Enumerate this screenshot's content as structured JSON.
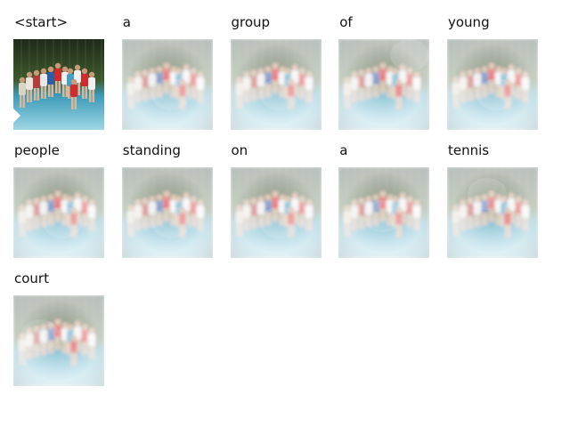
{
  "caption_tokens": [
    {
      "word": "<start>",
      "attention_focus": "none"
    },
    {
      "word": "a",
      "attention_focus": "people"
    },
    {
      "word": "group",
      "attention_focus": "people"
    },
    {
      "word": "of",
      "attention_focus": "top-right"
    },
    {
      "word": "young",
      "attention_focus": "people"
    },
    {
      "word": "people",
      "attention_focus": "people"
    },
    {
      "word": "standing",
      "attention_focus": "people"
    },
    {
      "word": "on",
      "attention_focus": "people"
    },
    {
      "word": "a",
      "attention_focus": "center"
    },
    {
      "word": "tennis",
      "attention_focus": "upper-center"
    },
    {
      "word": "court",
      "attention_focus": "center-left"
    }
  ],
  "colors": {
    "court_floor": "#3b9bb8",
    "court_floor_light": "#9fd6e6",
    "fence_dark": "#1f2a1a",
    "foliage": "#3d5a2c",
    "shirt_red": "#d62a2a",
    "shirt_white": "#f1f1f1",
    "overlay_white": "#ffffff"
  }
}
